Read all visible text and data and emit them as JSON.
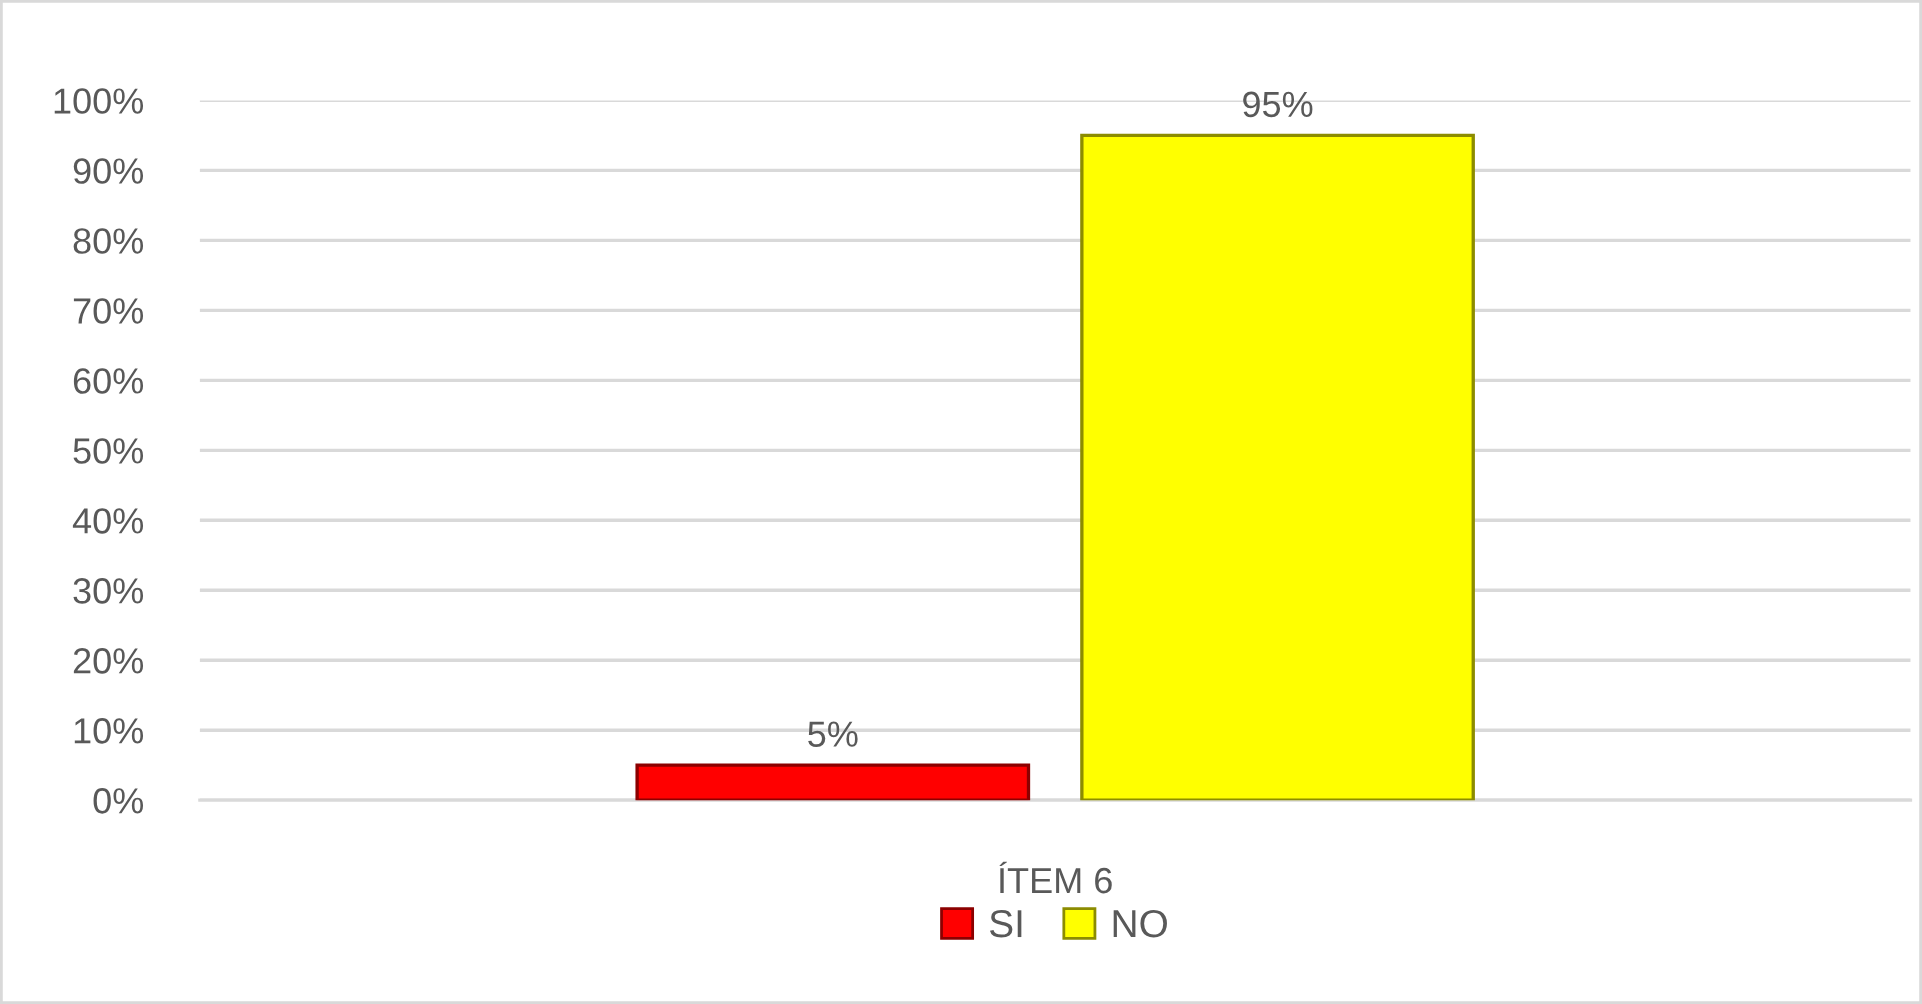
{
  "chart_data": {
    "type": "bar",
    "categories": [
      "ÍTEM 6"
    ],
    "series": [
      {
        "name": "SI",
        "color": "#ff0000",
        "values": [
          5
        ],
        "value_labels": [
          "5%"
        ]
      },
      {
        "name": "NO",
        "color": "#ffff00",
        "values": [
          95
        ],
        "value_labels": [
          "95%"
        ]
      }
    ],
    "ylim": [
      0,
      100
    ],
    "yticks": [
      {
        "value": 0,
        "label": "0%"
      },
      {
        "value": 10,
        "label": "10%"
      },
      {
        "value": 20,
        "label": "20%"
      },
      {
        "value": 30,
        "label": "30%"
      },
      {
        "value": 40,
        "label": "40%"
      },
      {
        "value": 50,
        "label": "50%"
      },
      {
        "value": 60,
        "label": "60%"
      },
      {
        "value": 70,
        "label": "70%"
      },
      {
        "value": 80,
        "label": "80%"
      },
      {
        "value": 90,
        "label": "90%"
      },
      {
        "value": 100,
        "label": "100%"
      }
    ],
    "grid": "y",
    "legend": "bottom"
  }
}
